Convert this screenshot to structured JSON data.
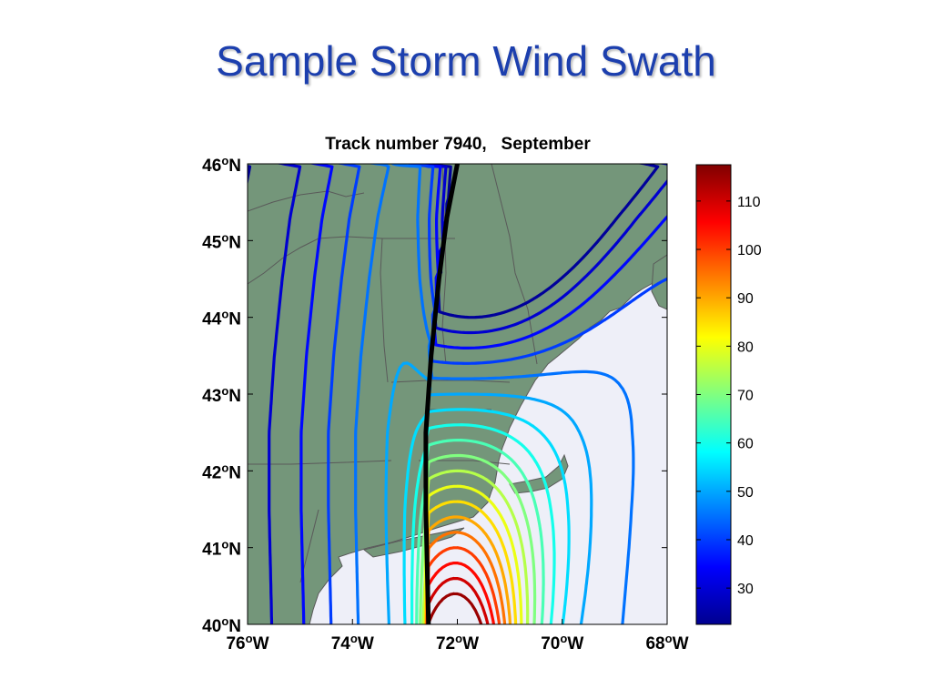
{
  "slide": {
    "title": "Sample Storm Wind Swath"
  },
  "colors": {
    "title": "#1c3fae",
    "land": "#74967a",
    "sea": "#eeeff8",
    "coast": "#5a5a5a",
    "track": "#000000"
  },
  "chart_data": {
    "type": "contour_map",
    "title": "Track number 7940,   September",
    "x_ticks": [
      {
        "deg": "76",
        "suf": "W",
        "v": -76
      },
      {
        "deg": "74",
        "suf": "W",
        "v": -74
      },
      {
        "deg": "72",
        "suf": "W",
        "v": -72
      },
      {
        "deg": "70",
        "suf": "W",
        "v": -70
      },
      {
        "deg": "68",
        "suf": "W",
        "v": -68
      }
    ],
    "y_ticks": [
      {
        "deg": "40",
        "suf": "N",
        "v": 40
      },
      {
        "deg": "41",
        "suf": "N",
        "v": 41
      },
      {
        "deg": "42",
        "suf": "N",
        "v": 42
      },
      {
        "deg": "43",
        "suf": "N",
        "v": 43
      },
      {
        "deg": "44",
        "suf": "N",
        "v": 44
      },
      {
        "deg": "45",
        "suf": "N",
        "v": 45
      },
      {
        "deg": "46",
        "suf": "N",
        "v": 46
      }
    ],
    "xlim": [
      -76,
      -68
    ],
    "ylim": [
      40,
      46
    ],
    "colorbar": {
      "ticks": [
        "30",
        "40",
        "50",
        "60",
        "70",
        "80",
        "90",
        "100",
        "110"
      ],
      "range": [
        22.5,
        117.5
      ],
      "colormap": "jet"
    },
    "storm_track": [
      [
        -72.0,
        46.0
      ],
      [
        -72.2,
        45.3
      ],
      [
        -72.35,
        44.5
      ],
      [
        -72.5,
        43.5
      ],
      [
        -72.6,
        42.5
      ],
      [
        -72.6,
        41.5
      ],
      [
        -72.55,
        40.0
      ]
    ],
    "contour_levels": [
      25,
      30,
      35,
      40,
      45,
      50,
      55,
      60,
      65,
      70,
      75,
      80,
      85,
      90,
      95,
      100,
      105,
      110,
      115
    ],
    "notes": "Wind speed contours drawn on either side of the storm track; maximum winds near the southern end east of the track."
  }
}
